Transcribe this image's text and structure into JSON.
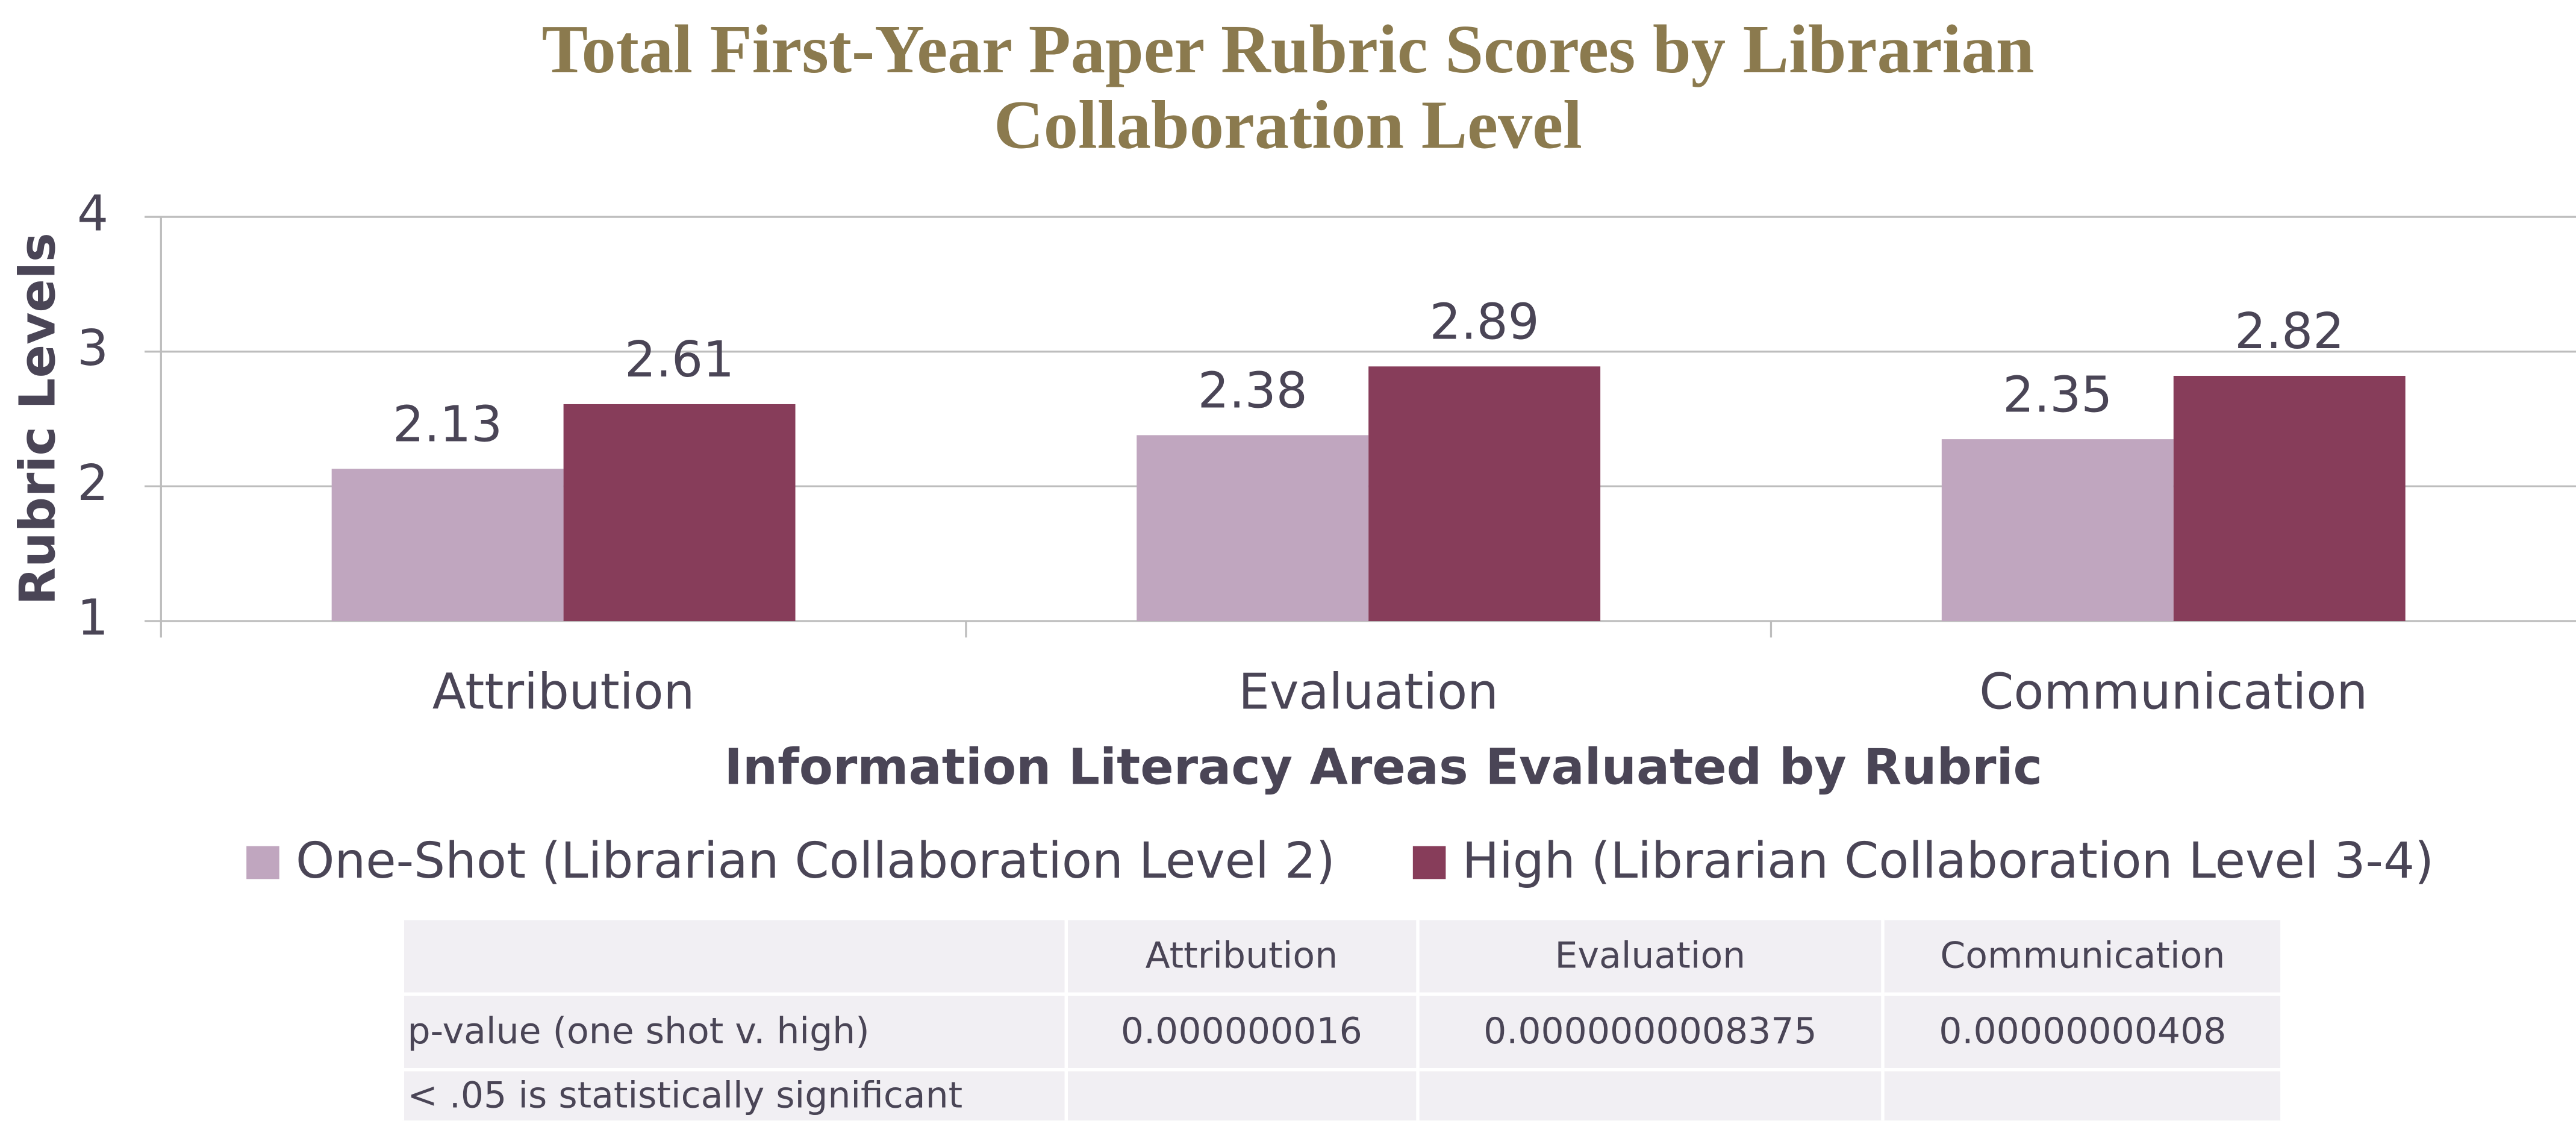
{
  "chart_data": {
    "type": "bar",
    "title": "Total First-Year Paper Rubric Scores by Librarian Collaboration Level",
    "x_label": "Information Literacy Areas Evaluated by Rubric",
    "y_label": "Rubric Levels",
    "categories": [
      "Attribution",
      "Evaluation",
      "Communication"
    ],
    "series": [
      {
        "name": "One-Shot (Librarian Collaboration Level 2)",
        "color": "#c0a6bf",
        "values": [
          2.13,
          2.38,
          2.35
        ]
      },
      {
        "name": "High (Librarian Collaboration Level 3-4)",
        "color": "#873d5a",
        "values": [
          2.61,
          2.89,
          2.82
        ]
      }
    ],
    "ylim": [
      1,
      4
    ],
    "yticks": [
      1,
      2,
      3,
      4
    ],
    "grid": true,
    "legend": "bottom"
  },
  "table": {
    "columns": [
      "Attribution",
      "Evaluation",
      "Communication"
    ],
    "rows": [
      {
        "label": "p-value (one shot v. high)",
        "cells": [
          "0.000000016",
          "0.0000000008375",
          "0.00000000408"
        ]
      }
    ],
    "note": "< .05 is statistically significant"
  }
}
